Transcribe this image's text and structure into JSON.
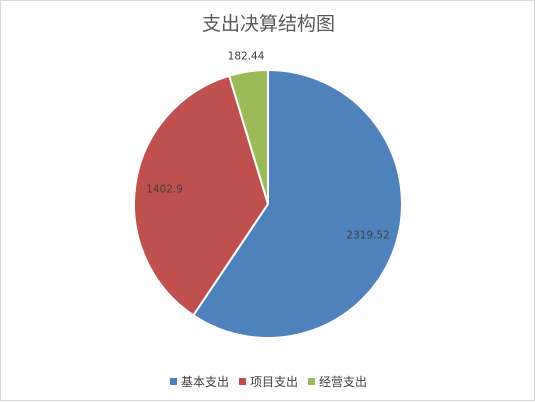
{
  "chart_data": {
    "type": "pie",
    "title": "支出决算结构图",
    "categories": [
      "基本支出",
      "项目支出",
      "经营支出"
    ],
    "values": [
      2319.52,
      1402.9,
      182.44
    ],
    "value_labels": [
      "2319.52",
      "1402.9",
      "182.44"
    ],
    "colors": [
      "#4f81bd",
      "#c0504d",
      "#9bbb59"
    ],
    "start": "12 o'clock",
    "direction": "clockwise",
    "legend_position": "bottom"
  }
}
